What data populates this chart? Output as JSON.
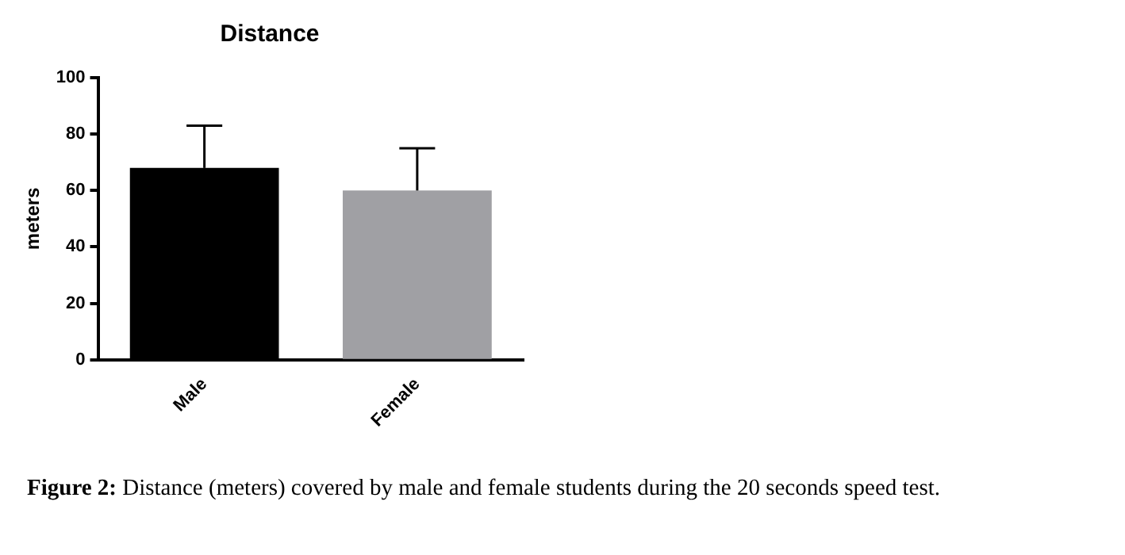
{
  "chart_data": {
    "type": "bar",
    "title": "Distance",
    "ylabel": "meters",
    "categories": [
      "Male",
      "Female"
    ],
    "values": [
      68,
      60
    ],
    "colors": [
      "#000000",
      "#a0a0a4"
    ],
    "errors": [
      [
        68,
        83
      ],
      [
        60,
        75
      ]
    ],
    "ylim": [
      0,
      100
    ],
    "yticks": [
      0,
      20,
      40,
      60,
      80,
      100
    ],
    "grid": false,
    "legend": false,
    "annotations": [
      "Figure 2: Distance (meters) covered by male and female students during the 20 seconds speed test."
    ]
  }
}
